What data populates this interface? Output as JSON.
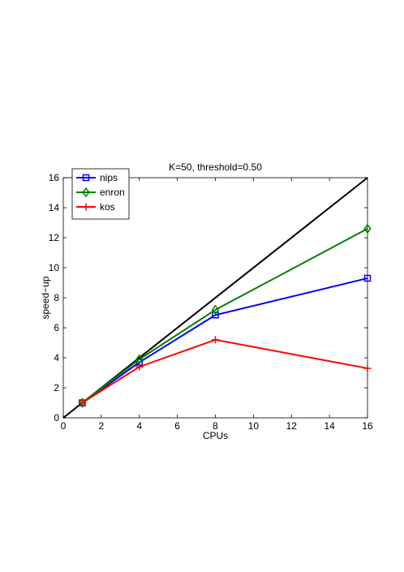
{
  "chart_data": {
    "type": "line",
    "title": "K=50, threshold=0.50",
    "xlabel": "CPUs",
    "ylabel": "speed−up",
    "xlim": [
      0,
      16
    ],
    "ylim": [
      0,
      16
    ],
    "xticks": [
      0,
      2,
      4,
      6,
      8,
      10,
      12,
      14,
      16
    ],
    "yticks": [
      0,
      2,
      4,
      6,
      8,
      10,
      12,
      14,
      16
    ],
    "grid": false,
    "legend_position": "top-left",
    "reference_line": {
      "x": [
        0,
        16
      ],
      "y": [
        0,
        16
      ],
      "color": "#000000"
    },
    "series": [
      {
        "name": "nips",
        "marker": "square",
        "color": "#0000ff",
        "x": [
          1,
          4,
          8,
          16
        ],
        "y": [
          1.0,
          3.7,
          6.85,
          9.3
        ]
      },
      {
        "name": "enron",
        "marker": "diamond",
        "color": "#008000",
        "x": [
          1,
          4,
          8,
          16
        ],
        "y": [
          1.0,
          3.9,
          7.2,
          12.6
        ]
      },
      {
        "name": "kos",
        "marker": "plus",
        "color": "#ff0000",
        "x": [
          1,
          4,
          8,
          16
        ],
        "y": [
          1.0,
          3.4,
          5.2,
          3.3
        ]
      }
    ]
  }
}
